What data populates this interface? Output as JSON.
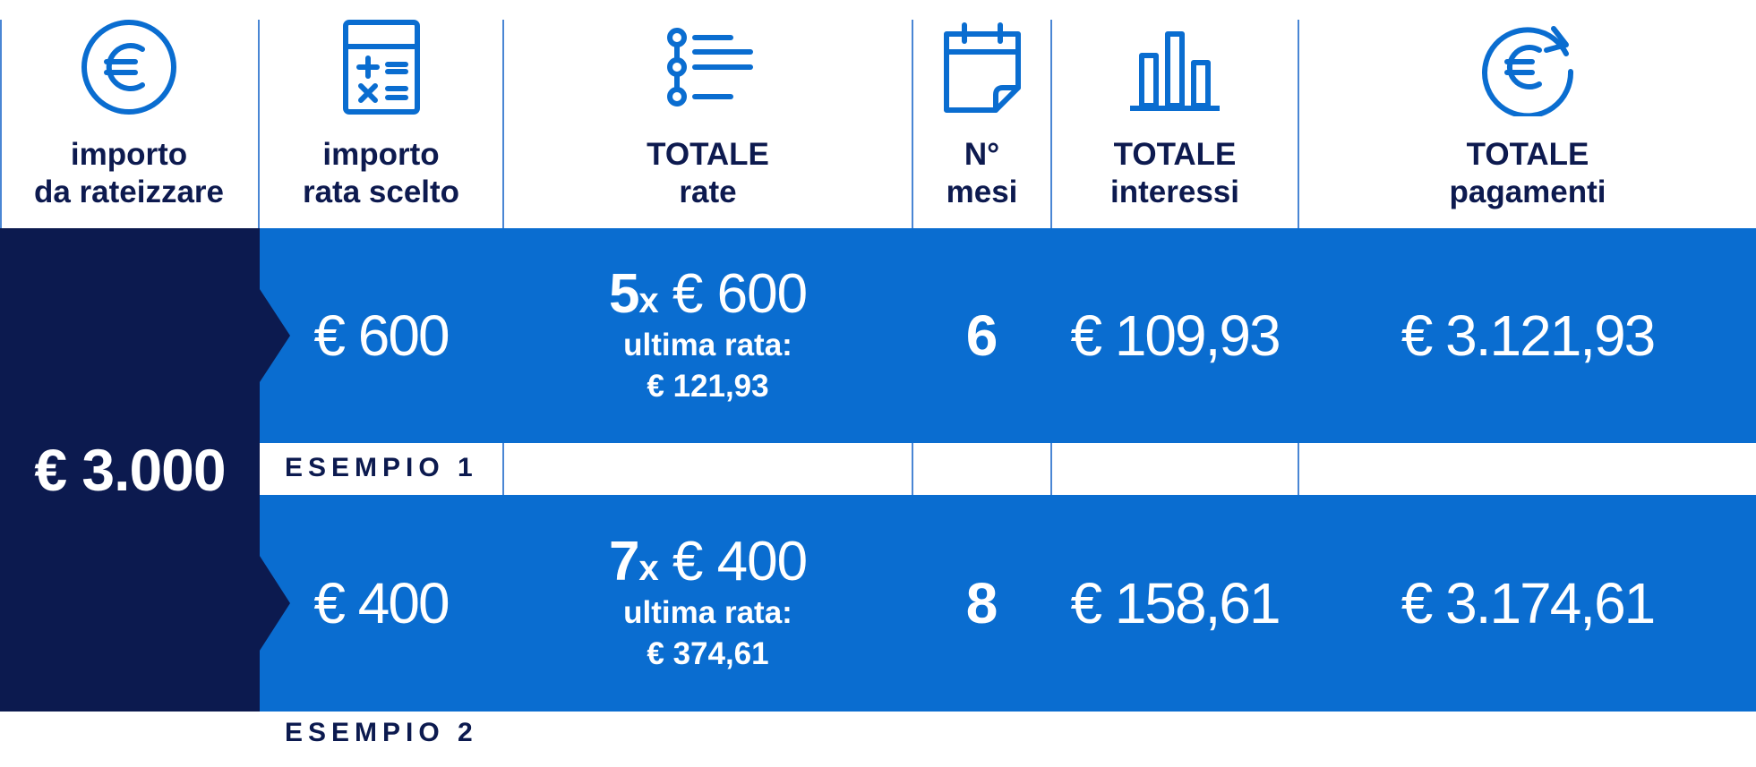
{
  "colors": {
    "dark_navy": "#0c1a4f",
    "blue": "#0a6dd0",
    "icon_blue": "#0a6dd0",
    "white": "#ffffff"
  },
  "header": {
    "columns": [
      {
        "icon": "euro-circle-icon",
        "line1": "importo",
        "line2": "da rateizzare"
      },
      {
        "icon": "calculator-icon",
        "line1": "importo",
        "line2": "rata scelto"
      },
      {
        "icon": "list-icon",
        "line1": "TOTALE",
        "line2": "rate"
      },
      {
        "icon": "calendar-icon",
        "line1": "N°",
        "line2": "mesi"
      },
      {
        "icon": "bar-chart-icon",
        "line1": "TOTALE",
        "line2": "interessi"
      },
      {
        "icon": "euro-refresh-icon",
        "line1": "TOTALE",
        "line2": "pagamenti"
      }
    ]
  },
  "amount_total": "€ 3.000",
  "examples": [
    {
      "label": "ESEMPIO 1",
      "rata_scelta": "€ 600",
      "n_rate": "5",
      "x": "x",
      "rata_val": " € 600",
      "ultima_label": "ultima rata:",
      "ultima_val": "€ 121,93",
      "mesi": "6",
      "interessi": "€ 109,93",
      "pagamenti": "€ 3.121,93"
    },
    {
      "label": "ESEMPIO 2",
      "rata_scelta": "€ 400",
      "n_rate": "7",
      "x": "x",
      "rata_val": " € 400",
      "ultima_label": "ultima rata:",
      "ultima_val": "€ 374,61",
      "mesi": "8",
      "interessi": "€ 158,61",
      "pagamenti": "€ 3.174,61"
    }
  ]
}
